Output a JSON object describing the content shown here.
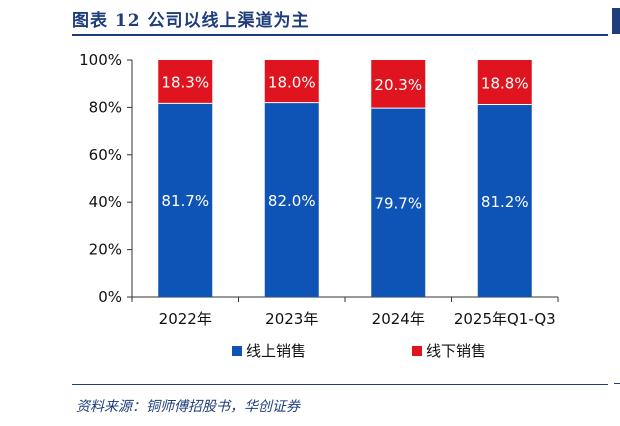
{
  "figure_title": "图表 12   公司以线上渠道为主",
  "source": "资料来源：铜师傅招股书，华创证券",
  "colors": {
    "online": "#0e53b6",
    "offline": "#e0141e",
    "accent": "#1f3d7a"
  },
  "chart_data": {
    "type": "bar",
    "stacked": true,
    "categories": [
      "2022年",
      "2023年",
      "2024年",
      "2025年Q1-Q3"
    ],
    "series": [
      {
        "name": "线上销售",
        "values": [
          81.7,
          82.0,
          79.7,
          81.2
        ],
        "labels": [
          "81.7%",
          "82.0%",
          "79.7%",
          "81.2%"
        ]
      },
      {
        "name": "线下销售",
        "values": [
          18.3,
          18.0,
          20.3,
          18.8
        ],
        "labels": [
          "18.3%",
          "18.0%",
          "20.3%",
          "18.8%"
        ]
      }
    ],
    "ylim": [
      0,
      100
    ],
    "yticks": [
      "0%",
      "20%",
      "40%",
      "60%",
      "80%",
      "100%"
    ],
    "ytick_values": [
      0,
      20,
      40,
      60,
      80,
      100
    ],
    "legend_position": "bottom",
    "grid": false
  }
}
